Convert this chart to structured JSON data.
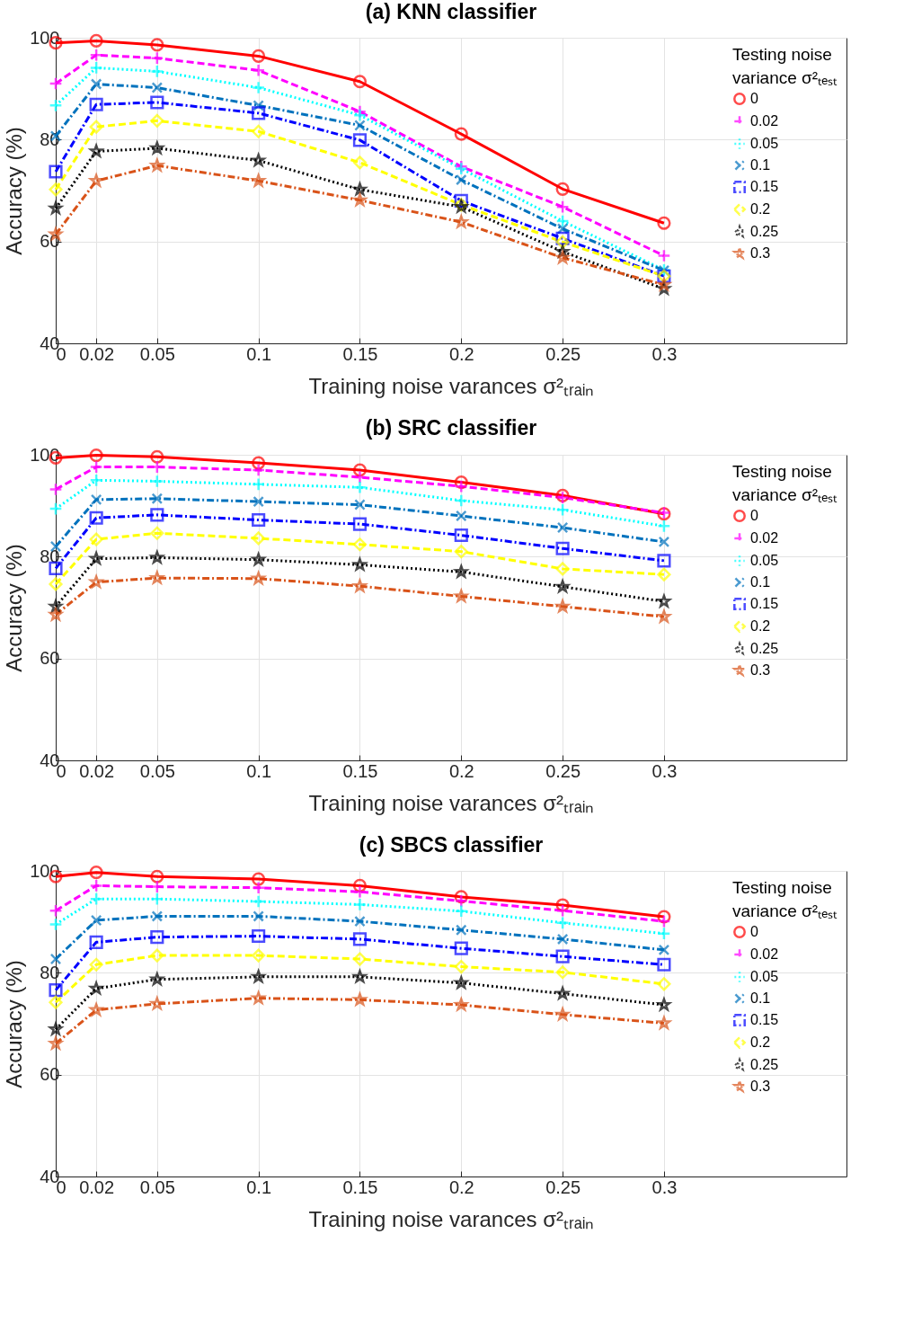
{
  "chart_data": [
    {
      "type": "line",
      "title": "(a) KNN classifier",
      "xlabel": "Training noise varances  σ²ₜᵣₐᵢₙ",
      "ylabel": "Accuracy (%)",
      "legend_title": "Testing noise variance σ²ₜₑₛₜ",
      "legend": "top right",
      "grid": true,
      "x": [
        0,
        0.02,
        0.05,
        0.1,
        0.15,
        0.2,
        0.25,
        0.3
      ],
      "xlim": [
        0,
        0.39
      ],
      "xticks": [
        0,
        0.02,
        0.05,
        0.1,
        0.15,
        0.2,
        0.25,
        0.3
      ],
      "ylim": [
        40,
        100
      ],
      "yticks": [
        40,
        60,
        80,
        100
      ],
      "series": [
        {
          "name": "0",
          "color": "#ff0000",
          "marker": "circle",
          "line_style": "solid",
          "values": [
            99.0,
            99.4,
            98.6,
            96.4,
            91.4,
            81.1,
            70.3,
            63.6
          ]
        },
        {
          "name": "0.02",
          "color": "#ff00ff",
          "marker": "cross",
          "line_style": "dashed",
          "values": [
            91.0,
            96.6,
            96.0,
            93.6,
            85.5,
            74.7,
            66.8,
            57.2
          ]
        },
        {
          "name": "0.05",
          "color": "#00ffff",
          "marker": "cross",
          "line_style": "dotted",
          "values": [
            86.7,
            94.1,
            93.4,
            90.2,
            84.8,
            74.3,
            64.0,
            54.4
          ]
        },
        {
          "name": "0.1",
          "color": "#0072bd",
          "marker": "x",
          "line_style": "dashdot",
          "values": [
            80.7,
            90.9,
            90.2,
            86.7,
            82.8,
            72.1,
            62.5,
            54.3
          ]
        },
        {
          "name": "0.15",
          "color": "#0000ff",
          "marker": "square",
          "line_style": "dashdot",
          "values": [
            73.7,
            86.9,
            87.3,
            85.2,
            79.9,
            68.0,
            60.6,
            53.2
          ]
        },
        {
          "name": "0.2",
          "color": "#ffff00",
          "marker": "diamond",
          "line_style": "dashed",
          "values": [
            70.2,
            82.5,
            83.7,
            81.6,
            75.5,
            67.2,
            59.9,
            53.2
          ]
        },
        {
          "name": "0.25",
          "color": "#000000",
          "marker": "star",
          "line_style": "dotted",
          "values": [
            66.5,
            77.7,
            78.3,
            75.9,
            70.2,
            66.8,
            58.0,
            50.7
          ]
        },
        {
          "name": "0.3",
          "color": "#d95319",
          "marker": "star",
          "line_style": "dashdot",
          "values": [
            61.4,
            71.9,
            74.9,
            71.9,
            68.1,
            63.8,
            56.8,
            51.5
          ]
        }
      ]
    },
    {
      "type": "line",
      "title": "(b) SRC classifier",
      "xlabel": "Training noise varances  σ²ₜᵣₐᵢₙ",
      "ylabel": "Accuracy (%)",
      "legend_title": "Testing noise variance σ²ₜₑₛₜ",
      "legend": "top right",
      "grid": true,
      "x": [
        0,
        0.02,
        0.05,
        0.1,
        0.15,
        0.2,
        0.25,
        0.3
      ],
      "xlim": [
        0,
        0.39
      ],
      "xticks": [
        0,
        0.02,
        0.05,
        0.1,
        0.15,
        0.2,
        0.25,
        0.3
      ],
      "ylim": [
        40,
        100
      ],
      "yticks": [
        40,
        60,
        80,
        100
      ],
      "series": [
        {
          "name": "0",
          "color": "#ff0000",
          "marker": "circle",
          "line_style": "solid",
          "values": [
            99.4,
            99.9,
            99.6,
            98.4,
            97.0,
            94.6,
            92.0,
            88.4
          ]
        },
        {
          "name": "0.02",
          "color": "#ff00ff",
          "marker": "cross",
          "line_style": "dashed",
          "values": [
            93.2,
            97.6,
            97.6,
            97.0,
            95.6,
            93.8,
            91.6,
            88.6
          ]
        },
        {
          "name": "0.05",
          "color": "#00ffff",
          "marker": "cross",
          "line_style": "dotted",
          "values": [
            89.4,
            95.0,
            94.8,
            94.2,
            93.6,
            91.0,
            89.2,
            86.0
          ]
        },
        {
          "name": "0.1",
          "color": "#0072bd",
          "marker": "x",
          "line_style": "dashdot",
          "values": [
            82.0,
            91.2,
            91.4,
            90.8,
            90.2,
            88.0,
            85.7,
            82.9
          ]
        },
        {
          "name": "0.15",
          "color": "#0000ff",
          "marker": "square",
          "line_style": "dashdot",
          "values": [
            77.7,
            87.6,
            88.2,
            87.2,
            86.4,
            84.2,
            81.6,
            79.2
          ]
        },
        {
          "name": "0.2",
          "color": "#ffff00",
          "marker": "diamond",
          "line_style": "dashed",
          "values": [
            74.6,
            83.4,
            84.6,
            83.6,
            82.4,
            81.0,
            77.6,
            76.5
          ]
        },
        {
          "name": "0.25",
          "color": "#000000",
          "marker": "star",
          "line_style": "dotted",
          "values": [
            70.2,
            79.6,
            79.8,
            79.4,
            78.4,
            77.0,
            74.1,
            71.2
          ]
        },
        {
          "name": "0.3",
          "color": "#d95319",
          "marker": "star",
          "line_style": "dashdot",
          "values": [
            68.6,
            75.0,
            75.8,
            75.7,
            74.2,
            72.2,
            70.2,
            68.2
          ]
        }
      ]
    },
    {
      "type": "line",
      "title": "(c) SBCS classifier",
      "xlabel": "Training noise varances  σ²ₜᵣₐᵢₙ",
      "ylabel": "Accuracy (%)",
      "legend_title": "Testing noise variance σ²ₜₑₛₜ",
      "legend": "top right",
      "grid": true,
      "x": [
        0,
        0.02,
        0.05,
        0.1,
        0.15,
        0.2,
        0.25,
        0.3
      ],
      "xlim": [
        0,
        0.39
      ],
      "xticks": [
        0,
        0.02,
        0.05,
        0.1,
        0.15,
        0.2,
        0.25,
        0.3
      ],
      "ylim": [
        40,
        100
      ],
      "yticks": [
        40,
        60,
        80,
        100
      ],
      "series": [
        {
          "name": "0",
          "color": "#ff0000",
          "marker": "circle",
          "line_style": "solid",
          "values": [
            98.9,
            99.7,
            98.9,
            98.4,
            97.1,
            94.9,
            93.3,
            91.0
          ]
        },
        {
          "name": "0.02",
          "color": "#ff00ff",
          "marker": "cross",
          "line_style": "dashed",
          "values": [
            92.2,
            97.1,
            96.9,
            96.7,
            95.9,
            94.1,
            92.2,
            90.1
          ]
        },
        {
          "name": "0.05",
          "color": "#00ffff",
          "marker": "cross",
          "line_style": "dotted",
          "values": [
            89.5,
            94.5,
            94.5,
            94.0,
            93.4,
            92.1,
            89.8,
            87.7
          ]
        },
        {
          "name": "0.1",
          "color": "#0072bd",
          "marker": "x",
          "line_style": "dashdot",
          "values": [
            82.7,
            90.3,
            91.1,
            91.1,
            90.1,
            88.4,
            86.6,
            84.5
          ]
        },
        {
          "name": "0.15",
          "color": "#0000ff",
          "marker": "square",
          "line_style": "dashdot",
          "values": [
            76.6,
            86.0,
            87.0,
            87.2,
            86.6,
            84.8,
            83.2,
            81.6
          ]
        },
        {
          "name": "0.2",
          "color": "#ffff00",
          "marker": "diamond",
          "line_style": "dashed",
          "values": [
            74.2,
            81.6,
            83.4,
            83.4,
            82.7,
            81.2,
            80.1,
            77.8
          ]
        },
        {
          "name": "0.25",
          "color": "#000000",
          "marker": "star",
          "line_style": "dotted",
          "values": [
            68.9,
            76.9,
            78.7,
            79.2,
            79.2,
            78.0,
            75.9,
            73.7
          ]
        },
        {
          "name": "0.3",
          "color": "#d95319",
          "marker": "star",
          "line_style": "dashdot",
          "values": [
            66.1,
            72.7,
            73.9,
            75.0,
            74.7,
            73.7,
            71.8,
            70.1
          ]
        }
      ]
    }
  ]
}
